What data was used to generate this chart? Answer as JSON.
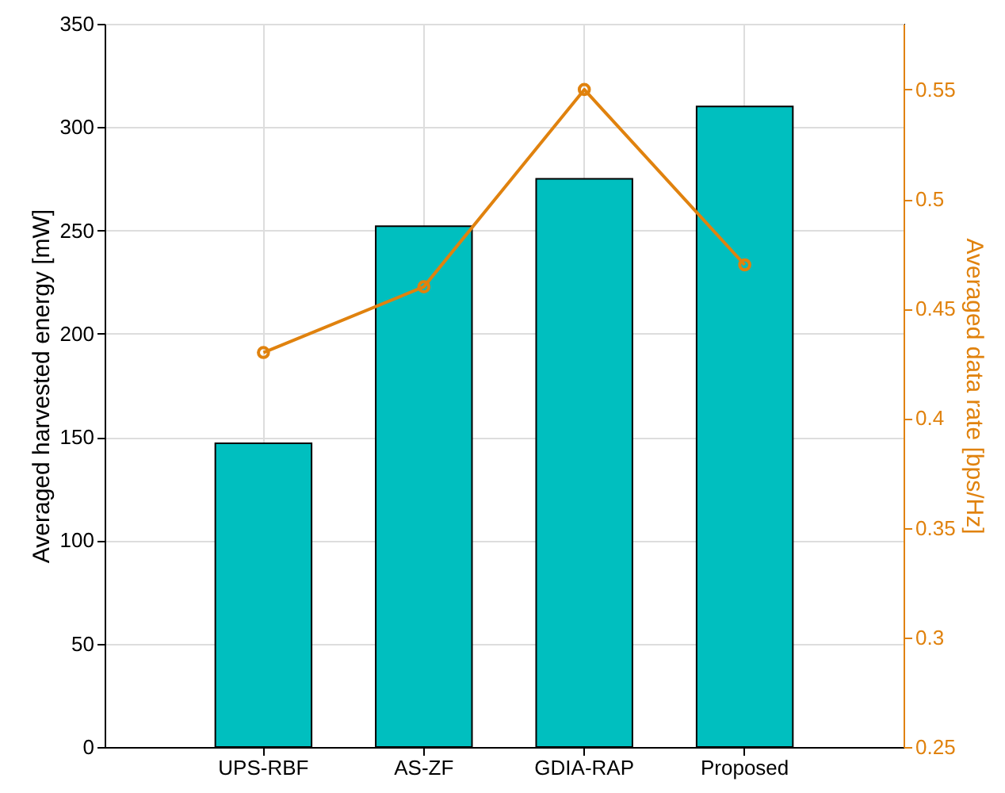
{
  "chart_data": {
    "type": "bar",
    "categories": [
      "UPS-RBF",
      "AS-ZF",
      "GDIA-RAP",
      "Proposed"
    ],
    "series": [
      {
        "color": "#00bfbf",
        "values": [
          147,
          252,
          275,
          310
        ]
      },
      {
        "type": "line",
        "axis": "y2",
        "color": "#e0820e",
        "values": [
          0.43,
          0.46,
          0.55,
          0.47
        ]
      }
    ],
    "ylabel": "Averaged harvested energy [mW]",
    "y2label": "Averaged data rate [bps/Hz]",
    "ylim": [
      0,
      350
    ],
    "yticks": [
      0,
      50,
      100,
      150,
      200,
      250,
      300,
      350
    ],
    "y2lim": [
      0.25,
      0.58
    ],
    "y2ticks": [
      0.25,
      0.3,
      0.35,
      0.4,
      0.45,
      0.5,
      0.55
    ],
    "grid": true,
    "marker": "circle",
    "line_style": "solid"
  }
}
